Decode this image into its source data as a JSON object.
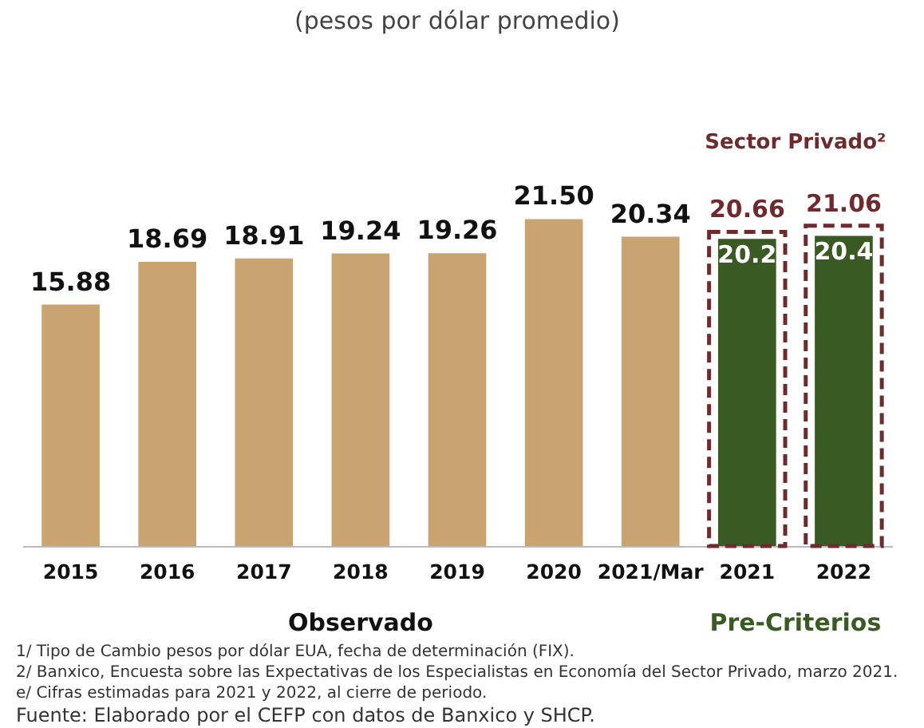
{
  "chart_data": {
    "type": "bar",
    "title": "(pesos por dólar promedio)",
    "categories": [
      "2015",
      "2016",
      "2017",
      "2018",
      "2019",
      "2020",
      "2021/Mar",
      "2021",
      "2022"
    ],
    "series": [
      {
        "name": "Observado",
        "color": "#c9a470",
        "values": [
          15.88,
          18.69,
          18.91,
          19.24,
          19.26,
          21.5,
          20.34,
          null,
          null
        ],
        "value_labels": [
          "15.88",
          "18.69",
          "18.91",
          "19.24",
          "19.26",
          "21.50",
          "20.34",
          null,
          null
        ]
      },
      {
        "name": "Pre-Criterios",
        "color": "#3a5a24",
        "values": [
          null,
          null,
          null,
          null,
          null,
          null,
          null,
          20.2,
          20.4
        ],
        "value_labels": [
          null,
          null,
          null,
          null,
          null,
          null,
          null,
          "20.2",
          "20.4"
        ]
      },
      {
        "name": "Sector Privado²",
        "color": "#6e2b2e",
        "line_style": "dashed",
        "values": [
          null,
          null,
          null,
          null,
          null,
          null,
          null,
          20.66,
          21.06
        ],
        "value_labels": [
          null,
          null,
          null,
          null,
          null,
          null,
          null,
          "20.66",
          "21.06"
        ]
      }
    ],
    "legend": false,
    "annotations": [
      "1/ Tipo de Cambio pesos por dólar EUA, fecha de determinación (FIX).",
      "2/ Banxico, Encuesta sobre las Expectativas de los Especialistas en Economía del Sector Privado, marzo 2021.",
      "e/ Cifras estimadas para 2021 y 2022, al cierre de periodo.",
      "Fuente: Elaborado por el CEFP con datos de Banxico y SHCP."
    ]
  }
}
